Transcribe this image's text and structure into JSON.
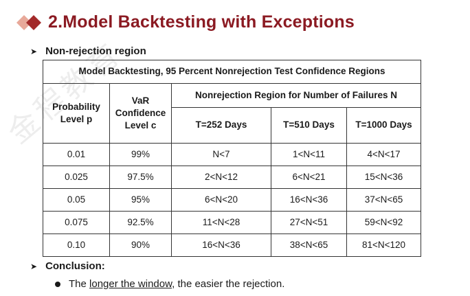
{
  "header": {
    "title": "2.Model Backtesting with Exceptions",
    "logo_icon": "double-diamond-logo",
    "accent_color": "#8b1a22"
  },
  "section_nonrejection": {
    "label": "Non-rejection region"
  },
  "table": {
    "caption": "Model Backtesting, 95 Percent Nonrejection Test  Confidence Regions",
    "col_probability": "Probability Level p",
    "col_var": "VaR Confidence Level c",
    "col_region": "Nonrejection Region for Number of Failures N",
    "col_t252": "T=252 Days",
    "col_t510": "T=510 Days",
    "col_t1000": "T=1000 Days",
    "rows": [
      [
        "0.01",
        "99%",
        "N<7",
        "1<N<11",
        "4<N<17"
      ],
      [
        "0.025",
        "97.5%",
        "2<N<12",
        "6<N<21",
        "15<N<36"
      ],
      [
        "0.05",
        "95%",
        "6<N<20",
        "16<N<36",
        "37<N<65"
      ],
      [
        "0.075",
        "92.5%",
        "11<N<28",
        "27<N<51",
        "59<N<92"
      ],
      [
        "0.10",
        "90%",
        "16<N<36",
        "38<N<65",
        "81<N<120"
      ]
    ]
  },
  "section_conclusion": {
    "label": "Conclusion:"
  },
  "conclusion": {
    "pre": "The ",
    "underlined": "longer the window",
    "post": ", the easier the rejection."
  }
}
